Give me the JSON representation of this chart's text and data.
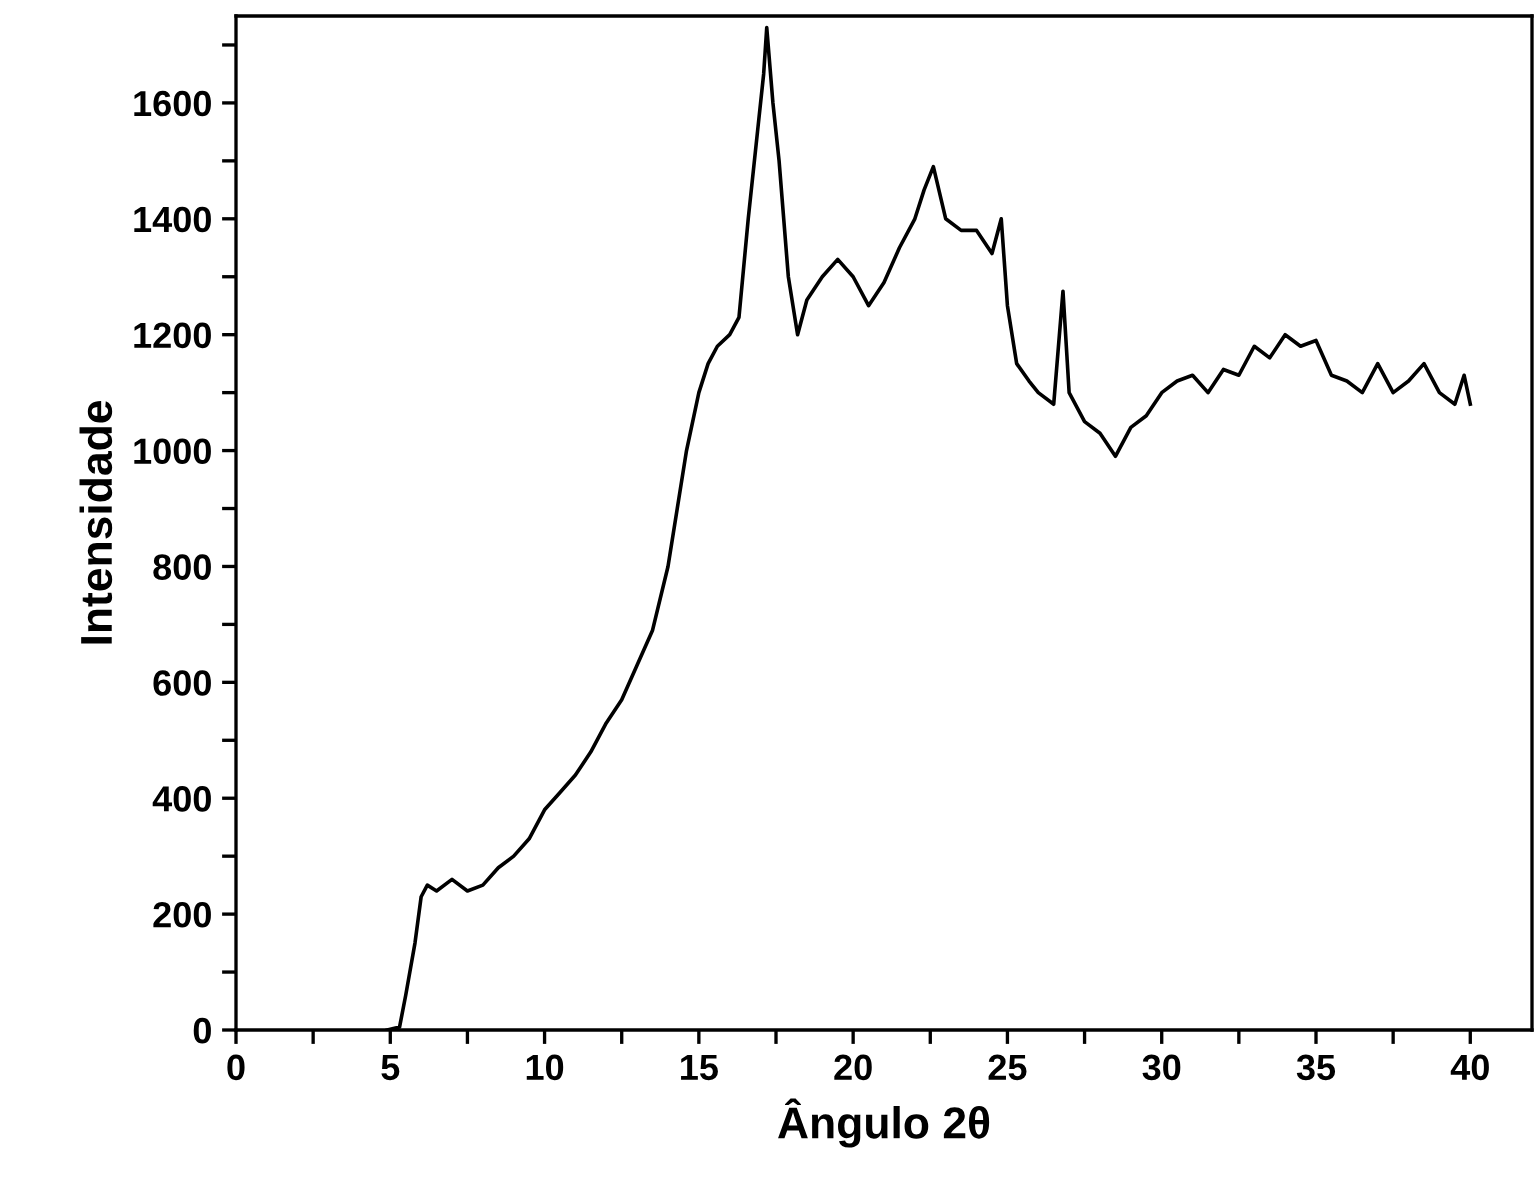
{
  "chart_data": {
    "type": "line",
    "xlabel": "Ângulo 2θ",
    "ylabel": "Intensidade",
    "xlim": [
      0,
      42
    ],
    "ylim": [
      0,
      1750
    ],
    "xticks": [
      0,
      {
        "value": 2.5,
        "label": null
      },
      5,
      {
        "value": 7.5,
        "label": null
      },
      10,
      {
        "value": 12.5,
        "label": null
      },
      15,
      {
        "value": 17.5,
        "label": null
      },
      20,
      {
        "value": 22.5,
        "label": null
      },
      25,
      {
        "value": 27.5,
        "label": null
      },
      30,
      {
        "value": 32.5,
        "label": null
      },
      35,
      {
        "value": 37.5,
        "label": null
      },
      40
    ],
    "yticks": [
      0,
      {
        "value": 100,
        "label": null
      },
      200,
      {
        "value": 300,
        "label": null
      },
      400,
      {
        "value": 500,
        "label": null
      },
      600,
      {
        "value": 700,
        "label": null
      },
      800,
      {
        "value": 900,
        "label": null
      },
      1000,
      {
        "value": 1100,
        "label": null
      },
      1200,
      {
        "value": 1300,
        "label": null
      },
      1400,
      {
        "value": 1500,
        "label": null
      },
      1600,
      {
        "value": 1700,
        "label": null
      }
    ],
    "grid": false,
    "marker": "none",
    "line_style": "solid",
    "series": [
      {
        "color": "#000000",
        "x": [
          4.9,
          5.3,
          5.5,
          5.8,
          6.0,
          6.2,
          6.5,
          7,
          7.5,
          8,
          8.5,
          9,
          9.5,
          10,
          10.5,
          11,
          11.5,
          12,
          12.5,
          13,
          13.5,
          14,
          14.3,
          14.6,
          15,
          15.3,
          15.6,
          16,
          16.3,
          16.6,
          16.9,
          17.1,
          17.2,
          17.4,
          17.6,
          17.9,
          18.2,
          18.5,
          19,
          19.5,
          20,
          20.5,
          21,
          21.5,
          22,
          22.3,
          22.6,
          23,
          23.5,
          24,
          24.5,
          24.8,
          25,
          25.3,
          25.7,
          26,
          26.5,
          26.8,
          27,
          27.5,
          28,
          28.5,
          29,
          29.5,
          30,
          30.5,
          31,
          31.5,
          32,
          32.5,
          33,
          33.5,
          34,
          34.5,
          35,
          35.5,
          36,
          36.5,
          37,
          37.5,
          38,
          38.5,
          39,
          39.5,
          39.8,
          40
        ],
        "values": [
          0,
          5,
          60,
          150,
          230,
          250,
          240,
          260,
          240,
          250,
          280,
          300,
          330,
          380,
          410,
          440,
          480,
          530,
          570,
          630,
          690,
          800,
          900,
          1000,
          1100,
          1150,
          1180,
          1200,
          1230,
          1400,
          1550,
          1650,
          1730,
          1600,
          1500,
          1300,
          1200,
          1260,
          1300,
          1330,
          1300,
          1250,
          1290,
          1350,
          1400,
          1450,
          1490,
          1400,
          1380,
          1380,
          1340,
          1400,
          1250,
          1150,
          1120,
          1100,
          1080,
          1275,
          1100,
          1050,
          1030,
          990,
          1040,
          1060,
          1100,
          1120,
          1130,
          1100,
          1140,
          1130,
          1180,
          1160,
          1200,
          1180,
          1190,
          1130,
          1120,
          1100,
          1150,
          1100,
          1120,
          1150,
          1100,
          1080,
          1130,
          1080
        ]
      }
    ]
  }
}
